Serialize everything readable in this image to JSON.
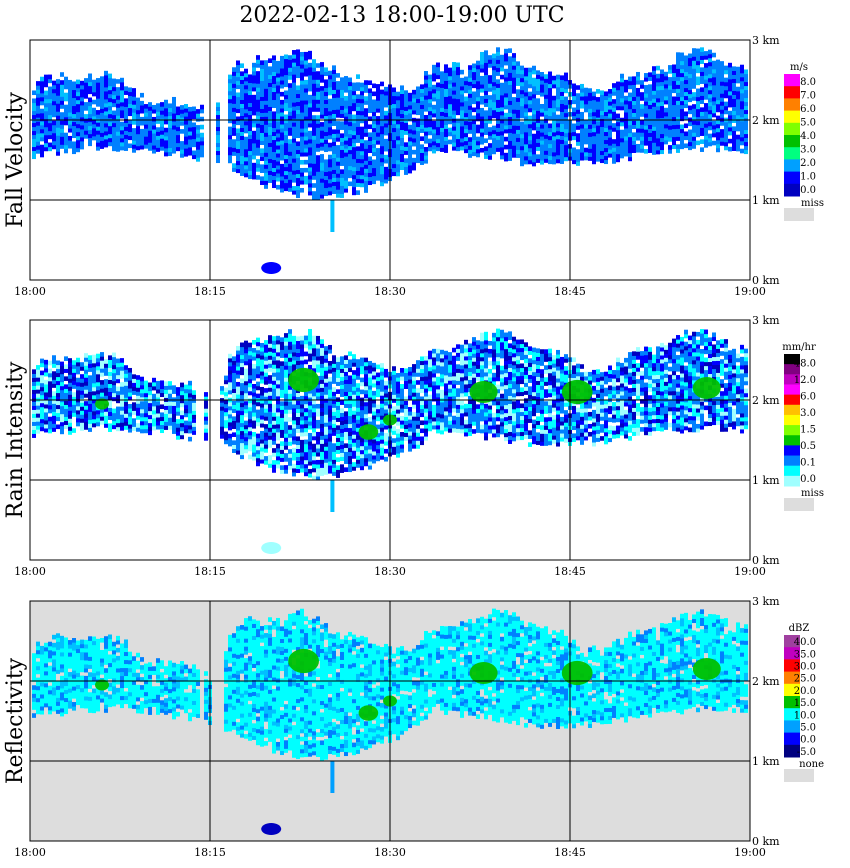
{
  "title": "2022-02-13  18:00-19:00 UTC",
  "chart_data": [
    {
      "type": "heatmap",
      "panel_label": "Fall Velocity",
      "x_ticks": [
        "18:00",
        "18:15",
        "18:30",
        "18:45",
        "19:00"
      ],
      "y_ticks": [
        "3 km",
        "2 km",
        "1 km",
        "0 km"
      ],
      "ylim_km": [
        0,
        3
      ],
      "legend": {
        "unit": "m/s",
        "levels": [
          "8.0",
          "7.0",
          "6.0",
          "5.0",
          "4.0",
          "3.0",
          "2.0",
          "1.0",
          "0.0"
        ],
        "colors": [
          "#ff00ff",
          "#ff0000",
          "#ff8000",
          "#ffff00",
          "#80ff00",
          "#00c000",
          "#00ff80",
          "#00a0ff",
          "#0000ff",
          "#0000c0"
        ],
        "missing_label": "miss",
        "missing_color": "#dddddd"
      }
    },
    {
      "type": "heatmap",
      "panel_label": "Rain Intensity",
      "x_ticks": [
        "18:00",
        "18:15",
        "18:30",
        "18:45",
        "19:00"
      ],
      "y_ticks": [
        "3 km",
        "2 km",
        "1 km",
        "0 km"
      ],
      "ylim_km": [
        0,
        3
      ],
      "legend": {
        "unit": "mm/hr",
        "levels": [
          "48.0",
          "12.0",
          "6.0",
          "3.0",
          "1.5",
          "0.5",
          "0.1",
          "0.0"
        ],
        "colors": [
          "#000000",
          "#800080",
          "#c000c0",
          "#ff00ff",
          "#ff0000",
          "#ffc000",
          "#ffff00",
          "#80ff00",
          "#00c000",
          "#0000ff",
          "#0080ff",
          "#00ffff",
          "#a0ffff"
        ],
        "missing_label": "miss",
        "missing_color": "#dddddd"
      }
    },
    {
      "type": "heatmap",
      "panel_label": "Reflectivity",
      "x_ticks": [
        "18:00",
        "18:15",
        "18:30",
        "18:45",
        "19:00"
      ],
      "y_ticks": [
        "3 km",
        "2 km",
        "1 km",
        "0 km"
      ],
      "ylim_km": [
        0,
        3
      ],
      "legend": {
        "unit": "dBZ",
        "levels": [
          "40.0",
          "35.0",
          "30.0",
          "25.0",
          "20.0",
          "15.0",
          "10.0",
          "5.0",
          "0.0",
          "-5.0"
        ],
        "colors": [
          "#a040a0",
          "#c000c0",
          "#ff0000",
          "#ff8000",
          "#ffff00",
          "#00c000",
          "#00ffff",
          "#00a0ff",
          "#0000ff",
          "#000080"
        ],
        "missing_label": "none",
        "missing_color": "#dddddd"
      }
    }
  ]
}
